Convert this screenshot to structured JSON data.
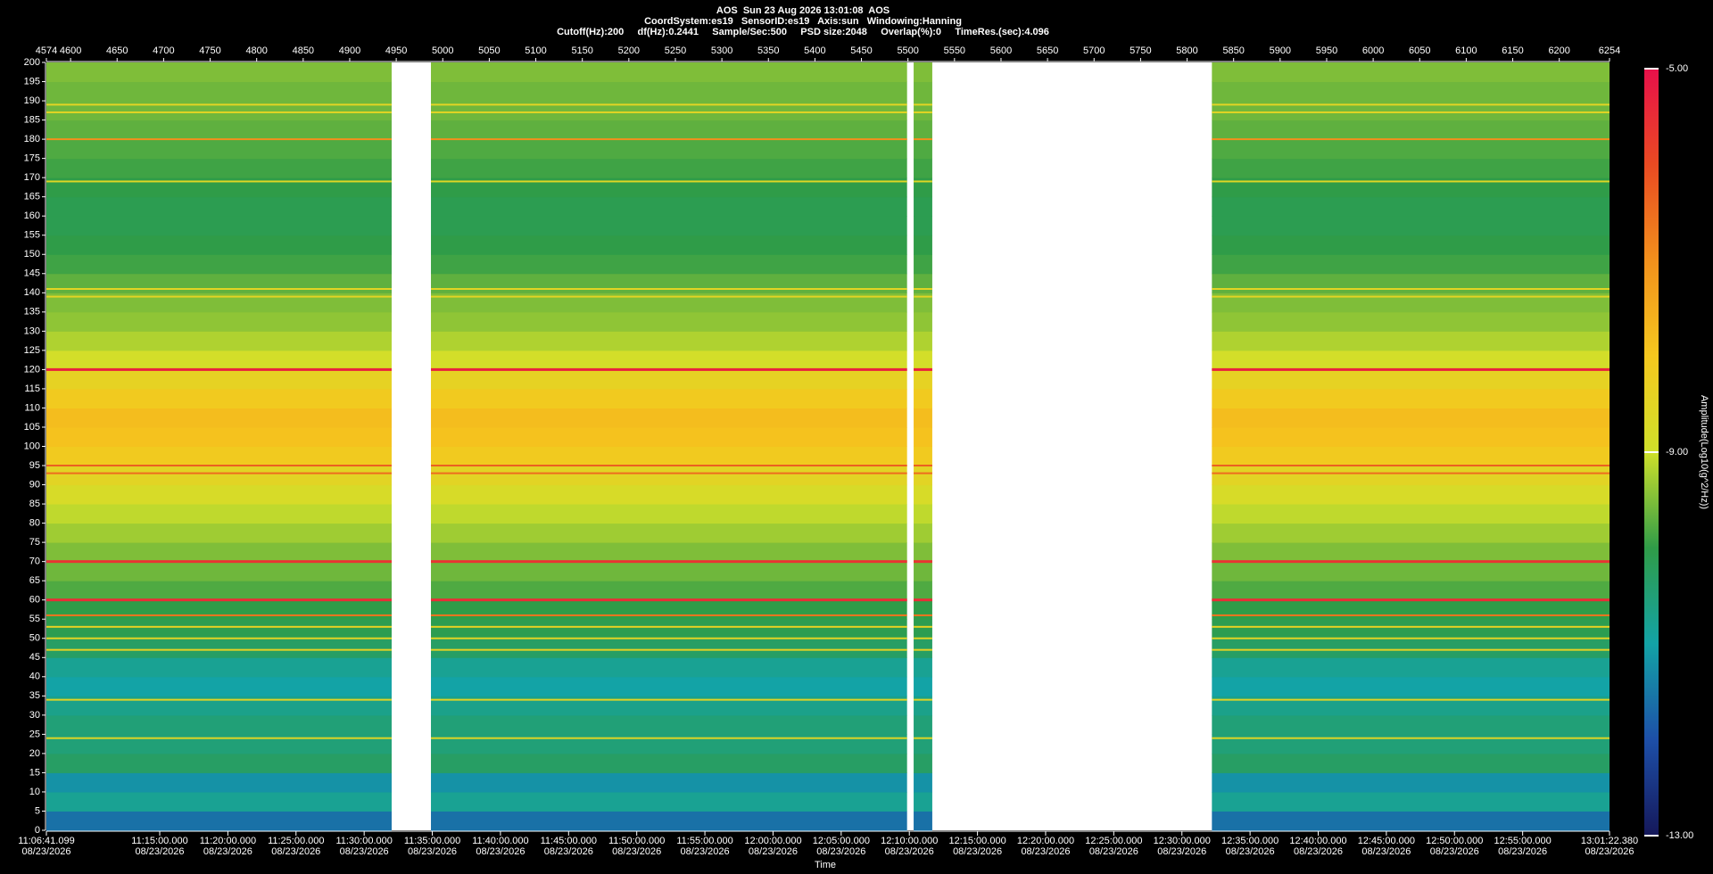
{
  "chart_data": {
    "type": "spectrogram",
    "title": "AOS  Sun 23 Aug 2026 13:01:08  AOS",
    "subtitle": "CoordSystem:es19   SensorID:es19   Axis:sun   Windowing:Hanning",
    "info": "Cutoff(Hz):200     df(Hz):0.2441     Sample/Sec:500     PSD size:2048     Overlap(%):0     TimeRes.(sec):4.096",
    "xlabel": "Time",
    "colorbar_label": "Amplitude(Log10(g^2/Hz))",
    "xlim": [
      "2026-08-23T11:06:41.099",
      "2026-08-23T13:01:22.380"
    ],
    "xticks": [
      {
        "value": "2026-08-23T11:06:41.099",
        "label": "11:06:41.099"
      },
      {
        "value": "2026-08-23T11:15:00.000",
        "label": "11:15:00.000"
      },
      {
        "value": "2026-08-23T11:20:00.000",
        "label": "11:20:00.000"
      },
      {
        "value": "2026-08-23T11:25:00.000",
        "label": "11:25:00.000"
      },
      {
        "value": "2026-08-23T11:30:00.000",
        "label": "11:30:00.000"
      },
      {
        "value": "2026-08-23T11:35:00.000",
        "label": "11:35:00.000"
      },
      {
        "value": "2026-08-23T11:40:00.000",
        "label": "11:40:00.000"
      },
      {
        "value": "2026-08-23T11:45:00.000",
        "label": "11:45:00.000"
      },
      {
        "value": "2026-08-23T11:50:00.000",
        "label": "11:50:00.000"
      },
      {
        "value": "2026-08-23T11:55:00.000",
        "label": "11:55:00.000"
      },
      {
        "value": "2026-08-23T12:00:00.000",
        "label": "12:00:00.000"
      },
      {
        "value": "2026-08-23T12:05:00.000",
        "label": "12:05:00.000"
      },
      {
        "value": "2026-08-23T12:10:00.000",
        "label": "12:10:00.000"
      },
      {
        "value": "2026-08-23T12:15:00.000",
        "label": "12:15:00.000"
      },
      {
        "value": "2026-08-23T12:20:00.000",
        "label": "12:20:00.000"
      },
      {
        "value": "2026-08-23T12:25:00.000",
        "label": "12:25:00.000"
      },
      {
        "value": "2026-08-23T12:30:00.000",
        "label": "12:30:00.000"
      },
      {
        "value": "2026-08-23T12:35:00.000",
        "label": "12:35:00.000"
      },
      {
        "value": "2026-08-23T12:40:00.000",
        "label": "12:40:00.000"
      },
      {
        "value": "2026-08-23T12:45:00.000",
        "label": "12:45:00.000"
      },
      {
        "value": "2026-08-23T12:50:00.000",
        "label": "12:50:00.000"
      },
      {
        "value": "2026-08-23T12:55:00.000",
        "label": "12:55:00.000"
      },
      {
        "value": "2026-08-23T13:01:22.380",
        "label": "13:01:22.380"
      }
    ],
    "xtick_dates": [
      "08/23/2026",
      "08/23/2026",
      "08/23/2026",
      "08/23/2026",
      "08/23/2026",
      "08/23/2026",
      "08/23/2026",
      "08/23/2026",
      "08/23/2026",
      "08/23/2026",
      "08/23/2026",
      "08/23/2026",
      "08/23/2026",
      "08/23/2026",
      "08/23/2026",
      "08/23/2026",
      "08/23/2026",
      "08/23/2026",
      "08/23/2026",
      "08/23/2026",
      "08/23/2026",
      "08/23/2026",
      "08/23/2026"
    ],
    "x2lim": [
      4574,
      6254
    ],
    "x2ticks": [
      4574,
      4600,
      4650,
      4700,
      4750,
      4800,
      4850,
      4900,
      4950,
      5000,
      5050,
      5100,
      5150,
      5200,
      5250,
      5300,
      5350,
      5400,
      5450,
      5500,
      5550,
      5600,
      5650,
      5700,
      5750,
      5800,
      5850,
      5900,
      5950,
      6000,
      6050,
      6100,
      6150,
      6200,
      6254
    ],
    "ylim": [
      0,
      200
    ],
    "yticks": [
      0,
      5,
      10,
      15,
      20,
      25,
      30,
      35,
      40,
      45,
      50,
      55,
      60,
      65,
      70,
      75,
      80,
      85,
      90,
      95,
      100,
      105,
      110,
      115,
      120,
      125,
      130,
      135,
      140,
      145,
      150,
      155,
      160,
      165,
      170,
      175,
      180,
      185,
      190,
      195,
      200
    ],
    "clim": [
      -13,
      -5
    ],
    "cticks": [
      {
        "value": -13,
        "label": "-13.00"
      },
      {
        "value": -9,
        "label": "-9.00"
      },
      {
        "value": -5,
        "label": "-5.00"
      }
    ],
    "colormap": [
      "#15185a",
      "#1d4fa8",
      "#13a3a6",
      "#2f9c48",
      "#cfe02a",
      "#f5c81e",
      "#f2901c",
      "#ea4a22",
      "#e8104a"
    ],
    "segments": [
      {
        "start": "2026-08-23T11:06:41.099",
        "end": "2026-08-23T11:32:01"
      },
      {
        "start": "2026-08-23T11:34:54",
        "end": "2026-08-23T12:09:50"
      },
      {
        "start": "2026-08-23T12:10:19",
        "end": "2026-08-23T12:11:41"
      },
      {
        "start": "2026-08-23T12:32:12",
        "end": "2026-08-23T13:01:22.380"
      }
    ],
    "freq_bins": [
      0,
      5,
      10,
      15,
      20,
      25,
      30,
      35,
      40,
      45,
      50,
      55,
      60,
      65,
      70,
      75,
      80,
      85,
      90,
      95,
      100,
      105,
      110,
      115,
      120,
      125,
      130,
      135,
      140,
      145,
      150,
      155,
      160,
      165,
      170,
      175,
      180,
      185,
      190,
      195,
      200
    ],
    "amplitudes": [
      -11.6,
      -10.8,
      -11.2,
      -10.3,
      -10.5,
      -10.5,
      -10.7,
      -11.0,
      -10.8,
      -10.3,
      -10.1,
      -10.0,
      -9.8,
      -9.6,
      -9.5,
      -9.3,
      -9.1,
      -8.8,
      -8.5,
      -8.1,
      -7.9,
      -7.8,
      -8.1,
      -8.4,
      -8.9,
      -9.2,
      -9.4,
      -9.5,
      -9.7,
      -9.9,
      -10.0,
      -10.1,
      -10.1,
      -10.0,
      -9.9,
      -9.8,
      -9.7,
      -9.6,
      -9.6,
      -9.5
    ],
    "lines": [
      {
        "freq": 189,
        "amplitude": -8.5
      },
      {
        "freq": 187,
        "amplitude": -8.5
      },
      {
        "freq": 180,
        "amplitude": -7.0
      },
      {
        "freq": 169,
        "amplitude": -8.6
      },
      {
        "freq": 141,
        "amplitude": -8.5
      },
      {
        "freq": 139,
        "amplitude": -8.5
      },
      {
        "freq": 120,
        "amplitude": -5.3
      },
      {
        "freq": 95,
        "amplitude": -6.3
      },
      {
        "freq": 93,
        "amplitude": -6.5
      },
      {
        "freq": 70,
        "amplitude": -5.6
      },
      {
        "freq": 60,
        "amplitude": -5.5
      },
      {
        "freq": 56,
        "amplitude": -6.6
      },
      {
        "freq": 53,
        "amplitude": -8.4
      },
      {
        "freq": 50,
        "amplitude": -8.5
      },
      {
        "freq": 47,
        "amplitude": -8.4
      },
      {
        "freq": 34,
        "amplitude": -8.5
      },
      {
        "freq": 24,
        "amplitude": -8.6
      }
    ]
  }
}
